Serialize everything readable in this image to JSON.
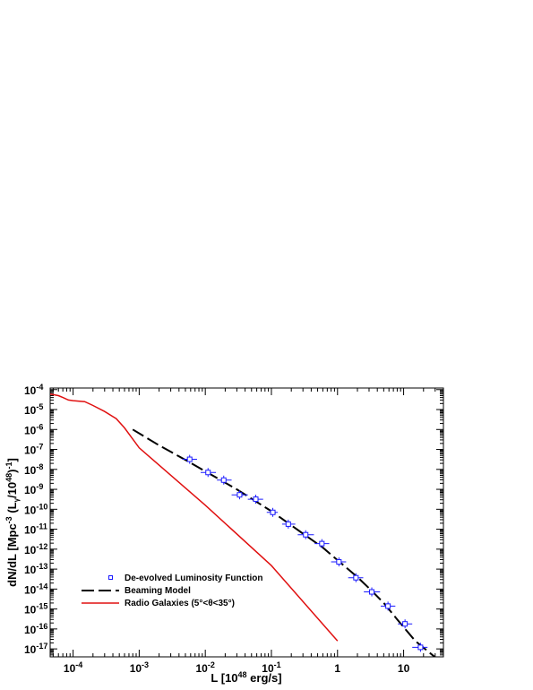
{
  "chart_data": {
    "type": "scatter",
    "xlabel": "L [10^48 erg/s]",
    "ylabel": "dN/dL [Mpc^-3 (L_γ/10^48)^-1]",
    "x_scale": "log",
    "y_scale": "log",
    "xlim": [
      4.5e-05,
      40
    ],
    "ylim": [
      4e-18,
      0.00012
    ],
    "x_ticks": [
      {
        "value": 0.0001,
        "base": "10",
        "exp": "-4"
      },
      {
        "value": 0.001,
        "base": "10",
        "exp": "-3"
      },
      {
        "value": 0.01,
        "base": "10",
        "exp": "-2"
      },
      {
        "value": 0.1,
        "base": "10",
        "exp": "-1"
      },
      {
        "value": 1,
        "base": "1",
        "exp": ""
      },
      {
        "value": 10,
        "base": "10",
        "exp": ""
      }
    ],
    "y_ticks": [
      {
        "value": 0.0001,
        "base": "10",
        "exp": "-4"
      },
      {
        "value": 1e-05,
        "base": "10",
        "exp": "-5"
      },
      {
        "value": 1e-06,
        "base": "10",
        "exp": "-6"
      },
      {
        "value": 1e-07,
        "base": "10",
        "exp": "-7"
      },
      {
        "value": 1e-08,
        "base": "10",
        "exp": "-8"
      },
      {
        "value": 1e-09,
        "base": "10",
        "exp": "-9"
      },
      {
        "value": 1e-10,
        "base": "10",
        "exp": "-10"
      },
      {
        "value": 1e-11,
        "base": "10",
        "exp": "-11"
      },
      {
        "value": 1e-12,
        "base": "10",
        "exp": "-12"
      },
      {
        "value": 1e-13,
        "base": "10",
        "exp": "-13"
      },
      {
        "value": 1e-14,
        "base": "10",
        "exp": "-14"
      },
      {
        "value": 1e-15,
        "base": "10",
        "exp": "-15"
      },
      {
        "value": 1e-16,
        "base": "10",
        "exp": "-16"
      },
      {
        "value": 1e-17,
        "base": "10",
        "exp": "-17"
      }
    ],
    "legend_position": "bottom-left",
    "series": [
      {
        "name": "De-evolved Luminosity Function",
        "kind": "points",
        "color": "#1a1aff",
        "points": [
          {
            "x": 0.0058,
            "y": 3.2e-08,
            "xlo": 0.0045,
            "xhi": 0.0075
          },
          {
            "x": 0.011,
            "y": 7e-09,
            "xlo": 0.0085,
            "xhi": 0.0145
          },
          {
            "x": 0.019,
            "y": 2.9e-09,
            "xlo": 0.015,
            "xhi": 0.025
          },
          {
            "x": 0.033,
            "y": 5.3e-10,
            "xlo": 0.025,
            "xhi": 0.044
          },
          {
            "x": 0.058,
            "y": 3.2e-10,
            "xlo": 0.044,
            "xhi": 0.075
          },
          {
            "x": 0.105,
            "y": 7e-11,
            "xlo": 0.085,
            "xhi": 0.125
          },
          {
            "x": 0.18,
            "y": 1.8e-11,
            "xlo": 0.145,
            "xhi": 0.23
          },
          {
            "x": 0.33,
            "y": 5.3e-12,
            "xlo": 0.25,
            "xhi": 0.44
          },
          {
            "x": 0.58,
            "y": 1.9e-12,
            "xlo": 0.45,
            "xhi": 0.75
          },
          {
            "x": 1.05,
            "y": 2.3e-13,
            "xlo": 0.8,
            "xhi": 1.35
          },
          {
            "x": 1.9,
            "y": 3.7e-14,
            "xlo": 1.45,
            "xhi": 2.45
          },
          {
            "x": 3.3,
            "y": 7.2e-15,
            "xlo": 2.5,
            "xhi": 4.4
          },
          {
            "x": 5.8,
            "y": 1.4e-15,
            "xlo": 4.5,
            "xhi": 7.5
          },
          {
            "x": 10.5,
            "y": 1.8e-16,
            "xlo": 8.2,
            "xhi": 13.5
          },
          {
            "x": 18,
            "y": 1.2e-17,
            "xlo": 13.5,
            "xhi": 23
          }
        ]
      },
      {
        "name": "Beaming Model",
        "kind": "dashed-line",
        "color": "#000000",
        "x": [
          0.0008,
          0.002,
          0.005,
          0.01,
          0.03,
          0.1,
          0.3,
          0.6,
          1,
          2,
          3,
          5,
          8,
          15,
          35
        ],
        "y": [
          1e-06,
          1.6e-07,
          3e-08,
          8e-09,
          1e-09,
          8e-11,
          6e-12,
          1.2e-12,
          2.8e-13,
          4e-14,
          1.1e-14,
          2e-15,
          3e-16,
          2.5e-17,
          2.5e-18
        ]
      },
      {
        "name": "Radio Galaxies (5°<θ<35°)",
        "kind": "line",
        "color": "#e01010",
        "x": [
          4.5e-05,
          6e-05,
          7e-05,
          8.5e-05,
          0.0001,
          0.00015,
          0.0002,
          0.0003,
          0.00045,
          0.0006,
          0.001,
          0.01,
          0.1,
          1
        ],
        "y": [
          6e-05,
          5e-05,
          4e-05,
          3e-05,
          2.8e-05,
          2.5e-05,
          1.6e-05,
          8e-06,
          3.5e-06,
          1.2e-06,
          1.2e-07,
          1.6e-10,
          1.5e-13,
          2.5e-17
        ]
      }
    ]
  }
}
